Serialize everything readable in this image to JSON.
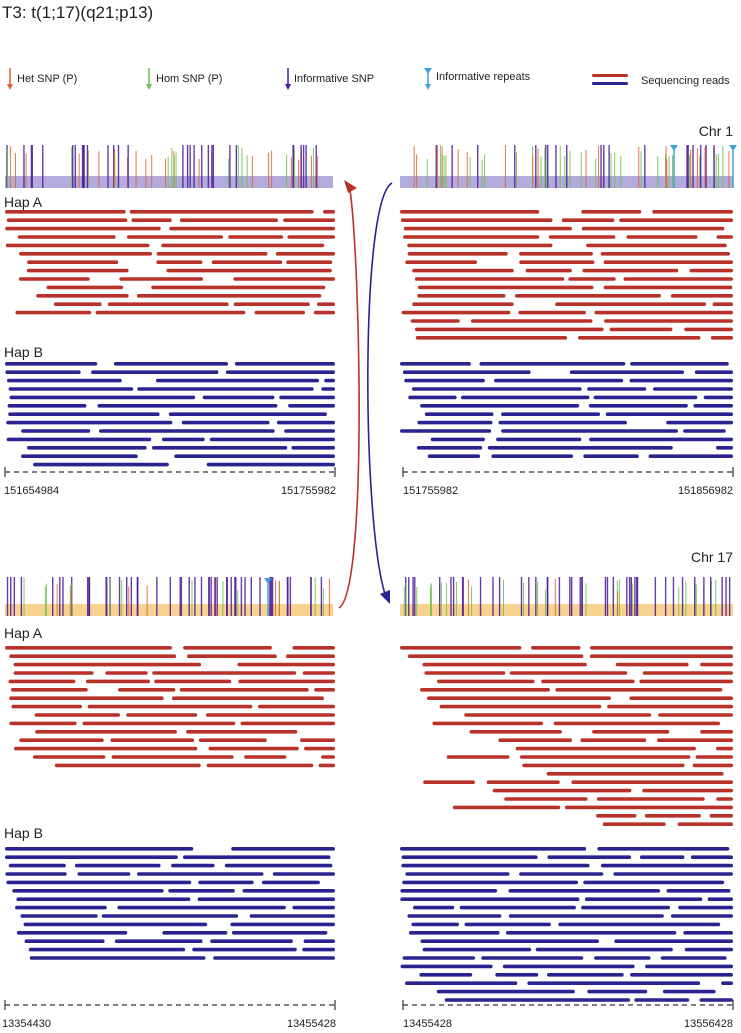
{
  "title": "T3: t(1;17)(q21;p13)",
  "legend": {
    "het_snp": "Het SNP (P)",
    "hom_snp": "Hom SNP (P)",
    "informative_snp": "Informative SNP",
    "informative_repeats": "Informative repeats",
    "sequencing_reads": "Sequencing reads"
  },
  "colors": {
    "het": "#e0602a",
    "hom": "#6cc04a",
    "informative": "#4b1a9a",
    "repeat": "#3ea3d8",
    "hapA": "#b8322a",
    "hapB": "#2a2390",
    "chr1_band": "#9a8fd0",
    "chr17_band": "#f3c46a"
  },
  "chr1": {
    "label": "Chr 1",
    "hapA_label": "Hap A",
    "hapB_label": "Hap B",
    "left_start": "151654984",
    "left_end": "151755982",
    "right_start": "151755982",
    "right_end": "151856982"
  },
  "chr17": {
    "label": "Chr 17",
    "hapA_label": "Hap A",
    "hapB_label": "Hap B",
    "left_start": "13354430",
    "left_end": "13455428",
    "right_start": "13455428",
    "right_end": "13556428"
  }
}
